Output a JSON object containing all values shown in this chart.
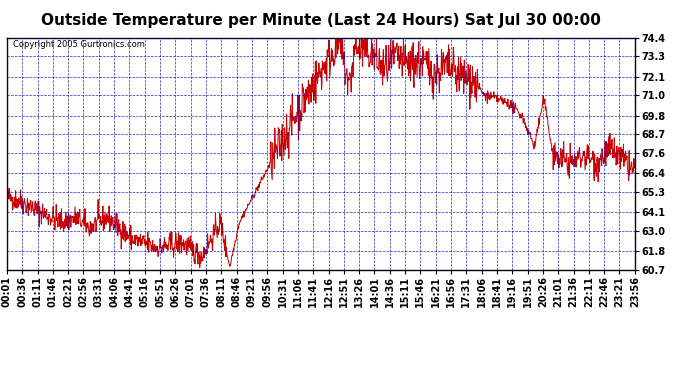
{
  "title": "Outside Temperature per Minute (Last 24 Hours) Sat Jul 30 00:00",
  "copyright": "Copyright 2005 Gurtronics.com",
  "ylabel_right_values": [
    74.4,
    73.3,
    72.1,
    71.0,
    69.8,
    68.7,
    67.6,
    66.4,
    65.3,
    64.1,
    63.0,
    61.8,
    60.7
  ],
  "ymin": 60.7,
  "ymax": 74.4,
  "line_color": "#cc0000",
  "background_color": "#ffffff",
  "plot_bg_color": "#ffffff",
  "grid_color": "#0000cc",
  "border_color": "#000000",
  "title_fontsize": 11,
  "copyright_fontsize": 6,
  "tick_label_fontsize": 7,
  "x_tick_labels": [
    "00:01",
    "00:36",
    "01:11",
    "01:46",
    "02:21",
    "02:56",
    "03:31",
    "04:06",
    "04:41",
    "05:16",
    "05:51",
    "06:26",
    "07:01",
    "07:36",
    "08:11",
    "08:46",
    "09:21",
    "09:56",
    "10:31",
    "11:06",
    "11:41",
    "12:16",
    "12:51",
    "13:26",
    "14:01",
    "14:36",
    "15:11",
    "15:46",
    "16:21",
    "16:56",
    "17:31",
    "18:06",
    "18:41",
    "19:16",
    "19:51",
    "20:26",
    "21:01",
    "21:36",
    "22:11",
    "22:46",
    "23:21",
    "23:56"
  ],
  "n_points": 1440,
  "curve_segments": [
    {
      "t0": 0.0,
      "t1": 0.02,
      "v0": 65.0,
      "v1": 64.8
    },
    {
      "t0": 0.02,
      "t1": 0.06,
      "v0": 64.8,
      "v1": 64.0
    },
    {
      "t0": 0.06,
      "t1": 0.09,
      "v0": 64.0,
      "v1": 63.5
    },
    {
      "t0": 0.09,
      "t1": 0.11,
      "v0": 63.5,
      "v1": 63.8
    },
    {
      "t0": 0.11,
      "t1": 0.13,
      "v0": 63.8,
      "v1": 63.2
    },
    {
      "t0": 0.13,
      "t1": 0.16,
      "v0": 63.2,
      "v1": 63.8
    },
    {
      "t0": 0.16,
      "t1": 0.2,
      "v0": 63.8,
      "v1": 62.5
    },
    {
      "t0": 0.2,
      "t1": 0.24,
      "v0": 62.5,
      "v1": 62.0
    },
    {
      "t0": 0.24,
      "t1": 0.28,
      "v0": 62.0,
      "v1": 62.3
    },
    {
      "t0": 0.28,
      "t1": 0.31,
      "v0": 62.3,
      "v1": 61.5
    },
    {
      "t0": 0.31,
      "t1": 0.34,
      "v0": 61.5,
      "v1": 63.5
    },
    {
      "t0": 0.34,
      "t1": 0.355,
      "v0": 63.5,
      "v1": 60.9
    },
    {
      "t0": 0.355,
      "t1": 0.37,
      "v0": 60.9,
      "v1": 63.5
    },
    {
      "t0": 0.37,
      "t1": 0.42,
      "v0": 63.5,
      "v1": 67.0
    },
    {
      "t0": 0.42,
      "t1": 0.47,
      "v0": 67.0,
      "v1": 70.5
    },
    {
      "t0": 0.47,
      "t1": 0.51,
      "v0": 70.5,
      "v1": 73.0
    },
    {
      "t0": 0.51,
      "t1": 0.53,
      "v0": 73.0,
      "v1": 74.2
    },
    {
      "t0": 0.53,
      "t1": 0.545,
      "v0": 74.2,
      "v1": 71.5
    },
    {
      "t0": 0.545,
      "t1": 0.555,
      "v0": 71.5,
      "v1": 73.8
    },
    {
      "t0": 0.555,
      "t1": 0.58,
      "v0": 73.8,
      "v1": 73.5
    },
    {
      "t0": 0.58,
      "t1": 0.6,
      "v0": 73.5,
      "v1": 72.5
    },
    {
      "t0": 0.6,
      "t1": 0.62,
      "v0": 72.5,
      "v1": 73.2
    },
    {
      "t0": 0.62,
      "t1": 0.64,
      "v0": 73.2,
      "v1": 72.8
    },
    {
      "t0": 0.64,
      "t1": 0.66,
      "v0": 72.8,
      "v1": 73.0
    },
    {
      "t0": 0.66,
      "t1": 0.68,
      "v0": 73.0,
      "v1": 72.3
    },
    {
      "t0": 0.68,
      "t1": 0.7,
      "v0": 72.3,
      "v1": 72.7
    },
    {
      "t0": 0.7,
      "t1": 0.72,
      "v0": 72.7,
      "v1": 72.2
    },
    {
      "t0": 0.72,
      "t1": 0.74,
      "v0": 72.2,
      "v1": 72.0
    },
    {
      "t0": 0.74,
      "t1": 0.76,
      "v0": 72.0,
      "v1": 71.0
    },
    {
      "t0": 0.76,
      "t1": 0.78,
      "v0": 71.0,
      "v1": 70.8
    },
    {
      "t0": 0.78,
      "t1": 0.8,
      "v0": 70.8,
      "v1": 70.5
    },
    {
      "t0": 0.8,
      "t1": 0.82,
      "v0": 70.5,
      "v1": 69.8
    },
    {
      "t0": 0.82,
      "t1": 0.84,
      "v0": 69.8,
      "v1": 68.0
    },
    {
      "t0": 0.84,
      "t1": 0.855,
      "v0": 68.0,
      "v1": 70.8
    },
    {
      "t0": 0.855,
      "t1": 0.87,
      "v0": 70.8,
      "v1": 67.5
    },
    {
      "t0": 0.87,
      "t1": 0.9,
      "v0": 67.5,
      "v1": 67.0
    },
    {
      "t0": 0.9,
      "t1": 0.92,
      "v0": 67.0,
      "v1": 67.5
    },
    {
      "t0": 0.92,
      "t1": 0.94,
      "v0": 67.5,
      "v1": 67.0
    },
    {
      "t0": 0.94,
      "t1": 0.96,
      "v0": 67.0,
      "v1": 67.8
    },
    {
      "t0": 0.96,
      "t1": 0.98,
      "v0": 67.8,
      "v1": 67.2
    },
    {
      "t0": 0.98,
      "t1": 1.0,
      "v0": 67.2,
      "v1": 66.5
    }
  ]
}
